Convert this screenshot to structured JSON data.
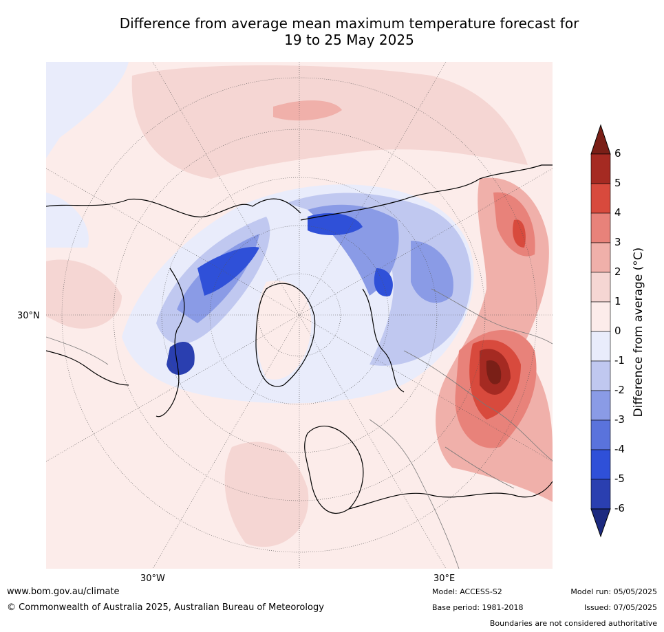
{
  "title": {
    "line1": "Difference from average mean maximum temperature forecast for",
    "line2": "19 to 25 May 2025"
  },
  "axis_labels": {
    "lat_left": "30°N",
    "lon_left": "30°W",
    "lon_right": "30°E"
  },
  "colorbar": {
    "title": "Difference from average (°C)",
    "ticks": [
      "6",
      "5",
      "4",
      "3",
      "2",
      "1",
      "0",
      "-1",
      "-2",
      "-3",
      "-4",
      "-5",
      "-6"
    ],
    "colors": {
      "above_max": "#7a1f17",
      "5_to_6": "#a52a22",
      "4_to_5": "#d84a3d",
      "3_to_4": "#e8827a",
      "2_to_3": "#f0b0aa",
      "1_to_2": "#f5d6d3",
      "0_to_1": "#fcecea",
      "-1_to_0": "#e9ecfb",
      "-2_to_-1": "#c0c8f0",
      "-3_to_-2": "#8a9be6",
      "-4_to_-3": "#5a73dc",
      "-5_to_-4": "#2f50d8",
      "-6_to_-5": "#2a3fb0",
      "below_min": "#1c2a80"
    }
  },
  "footer": {
    "website": "www.bom.gov.au/climate",
    "copyright": "© Commonwealth of Australia 2025, Australian Bureau of Meteorology",
    "model": "Model: ACCESS-S2",
    "base_period": "Base period: 1981-2018",
    "model_run": "Model run: 05/05/2025",
    "issued": "Issued: 07/05/2025",
    "disclaimer": "Boundaries are not considered authoritative"
  }
}
